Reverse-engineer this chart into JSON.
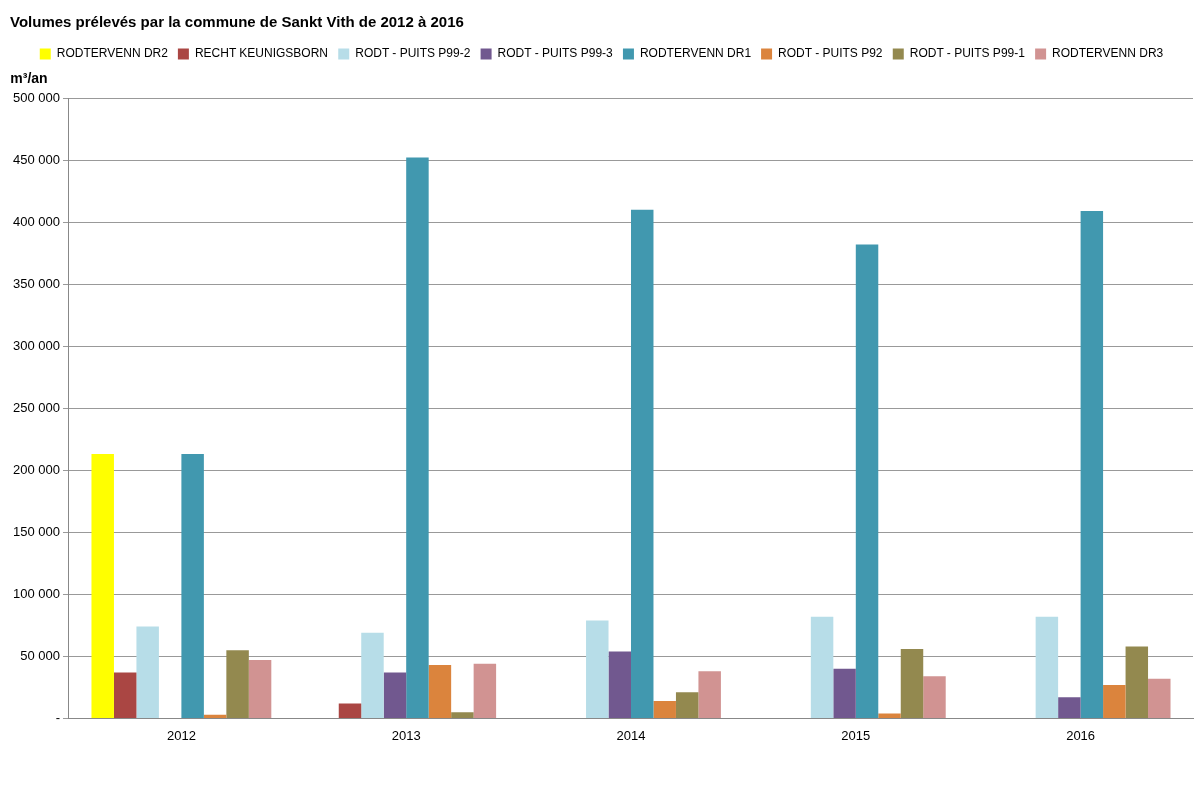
{
  "chart_data": {
    "type": "bar",
    "title": "Volumes prélevés par la commune de Sankt Vith de 2012 à 2016",
    "ylabel": "m³/an",
    "categories": [
      "2012",
      "2013",
      "2014",
      "2015",
      "2016"
    ],
    "series": [
      {
        "name": "RODTERVENN DR2",
        "color": "#ffff00",
        "values": [
          213000,
          0,
          0,
          0,
          0
        ]
      },
      {
        "name": "RECHT KEUNIGSBORN",
        "color": "#aa4643",
        "values": [
          37000,
          12000,
          0,
          0,
          0
        ]
      },
      {
        "name": "RODT - PUITS P99-2",
        "color": "#b7dde8",
        "values": [
          74000,
          69000,
          79000,
          82000,
          82000
        ]
      },
      {
        "name": "RODT - PUITS P99-3",
        "color": "#71588f",
        "values": [
          0,
          37000,
          54000,
          40000,
          17000
        ]
      },
      {
        "name": "RODTERVENN DR1",
        "color": "#4198af",
        "values": [
          213000,
          452000,
          410000,
          382000,
          409000
        ]
      },
      {
        "name": "RODT - PUITS P92",
        "color": "#db843d",
        "values": [
          3000,
          43000,
          14000,
          4000,
          27000
        ]
      },
      {
        "name": "RODT - PUITS P99-1",
        "color": "#93894f",
        "values": [
          55000,
          5000,
          21000,
          56000,
          58000
        ]
      },
      {
        "name": "RODTERVENN DR3",
        "color": "#d19392",
        "values": [
          47000,
          44000,
          38000,
          34000,
          32000
        ]
      }
    ],
    "ylim": [
      0,
      500000
    ],
    "yticks": [
      {
        "value": 0,
        "label": "-"
      },
      {
        "value": 50000,
        "label": "50 000"
      },
      {
        "value": 100000,
        "label": "100 000"
      },
      {
        "value": 150000,
        "label": "150 000"
      },
      {
        "value": 200000,
        "label": "200 000"
      },
      {
        "value": 250000,
        "label": "250 000"
      },
      {
        "value": 300000,
        "label": "300 000"
      },
      {
        "value": 350000,
        "label": "350 000"
      },
      {
        "value": 400000,
        "label": "400 000"
      },
      {
        "value": 450000,
        "label": "450 000"
      },
      {
        "value": 500000,
        "label": "500 000"
      }
    ],
    "grid": "y",
    "legend": "top"
  }
}
